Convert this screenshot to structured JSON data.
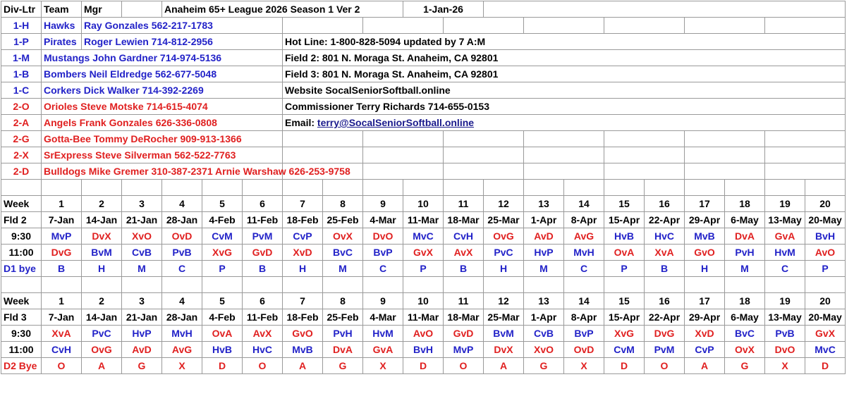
{
  "header": {
    "div_ltr": "Div-Ltr",
    "team": "Team",
    "mgr": "Mgr",
    "title": "Anaheim 65+ League 2026  Season 1 Ver 2",
    "date": "1-Jan-26"
  },
  "teams": [
    {
      "code": "1-H",
      "team": "Hawks",
      "contact": "Ray Gonzales 562-217-1783",
      "color": "#2222c8"
    },
    {
      "code": "1-P",
      "team": "Pirates",
      "contact": "Roger Lewien 714-812-2956",
      "color": "#2222c8"
    },
    {
      "code": "1-M",
      "text": "Mustangs John Gardner 714-974-5136",
      "color": "#2222c8"
    },
    {
      "code": "1-B",
      "text": "Bombers Neil Eldredge 562-677-5048",
      "color": "#2222c8"
    },
    {
      "code": "1-C",
      "text": "Corkers Dick Walker 714-392-2269",
      "color": "#2222c8"
    },
    {
      "code": "2-O",
      "text": "Orioles Steve Motske 714-615-4074",
      "color": "#e02020"
    },
    {
      "code": "2-A",
      "text": "Angels Frank Gonzales  626-336-0808",
      "color": "#e02020"
    },
    {
      "code": "2-G",
      "text": "Gotta-Bee Tommy DeRocher 909-913-1366",
      "color": "#e02020"
    },
    {
      "code": "2-X",
      "text": "SrExpress Steve Silverman 562-522-7763",
      "color": "#e02020"
    },
    {
      "code": "2-D",
      "text": "Bulldogs Mike Gremer 310-387-2371 Arnie Warshaw 626-253-9758",
      "color": "#e02020"
    }
  ],
  "info": [
    {
      "text": "Hot Line: 1-800-828-5094 updated by 7 A:M"
    },
    {
      "text": "Field 2: 801 N. Moraga St. Anaheim, CA 92801"
    },
    {
      "text": "Field 3: 801 N. Moraga St. Anaheim, CA 92801"
    },
    {
      "text": "Website SocalSeniorSoftball.online"
    },
    {
      "text": "Commissioner Terry Richards 714-655-0153"
    },
    {
      "text": "Email:",
      "link": "terry@SocalSeniorSoftball.online"
    }
  ],
  "schedules": [
    {
      "week_label": "Week",
      "weeks": [
        1,
        2,
        3,
        4,
        5,
        6,
        7,
        8,
        9,
        10,
        11,
        12,
        13,
        14,
        15,
        16,
        17,
        18,
        19,
        20
      ],
      "field": "Fld 2",
      "dates": [
        "7-Jan",
        "14-Jan",
        "21-Jan",
        "28-Jan",
        "4-Feb",
        "11-Feb",
        "18-Feb",
        "25-Feb",
        "4-Mar",
        "11-Mar",
        "18-Mar",
        "25-Mar",
        "1-Apr",
        "8-Apr",
        "15-Apr",
        "22-Apr",
        "29-Apr",
        "6-May",
        "13-May",
        "20-May"
      ],
      "slots": [
        {
          "time": "9:30",
          "games": [
            "MvP",
            "DvX",
            "XvO",
            "OvD",
            "CvM",
            "PvM",
            "CvP",
            "OvX",
            "DvO",
            "MvC",
            "CvH",
            "OvG",
            "AvD",
            "AvG",
            "HvB",
            "HvC",
            "MvB",
            "DvA",
            "GvA",
            "BvH"
          ]
        },
        {
          "time": "11:00",
          "games": [
            "DvG",
            "BvM",
            "CvB",
            "PvB",
            "XvG",
            "GvD",
            "XvD",
            "BvC",
            "BvP",
            "GvX",
            "AvX",
            "PvC",
            "HvP",
            "MvH",
            "OvA",
            "XvA",
            "GvO",
            "PvH",
            "HvM",
            "AvO"
          ]
        }
      ],
      "bye_label": "D1 bye",
      "byes": [
        "B",
        "H",
        "M",
        "C",
        "P",
        "B",
        "H",
        "M",
        "C",
        "P",
        "B",
        "H",
        "M",
        "C",
        "P",
        "B",
        "H",
        "M",
        "C",
        "P"
      ]
    },
    {
      "week_label": "Week",
      "weeks": [
        1,
        2,
        3,
        4,
        5,
        6,
        7,
        8,
        9,
        10,
        11,
        12,
        13,
        14,
        15,
        16,
        17,
        18,
        19,
        20
      ],
      "field": "Fld 3",
      "dates": [
        "7-Jan",
        "14-Jan",
        "21-Jan",
        "28-Jan",
        "4-Feb",
        "11-Feb",
        "18-Feb",
        "25-Feb",
        "4-Mar",
        "11-Mar",
        "18-Mar",
        "25-Mar",
        "1-Apr",
        "8-Apr",
        "15-Apr",
        "22-Apr",
        "29-Apr",
        "6-May",
        "13-May",
        "20-May"
      ],
      "slots": [
        {
          "time": "9:30",
          "games": [
            "XvA",
            "PvC",
            "HvP",
            "MvH",
            "OvA",
            "AvX",
            "GvO",
            "PvH",
            "HvM",
            "AvO",
            "GvD",
            "BvM",
            "CvB",
            "BvP",
            "XvG",
            "DvG",
            "XvD",
            "BvC",
            "PvB",
            "GvX"
          ]
        },
        {
          "time": "11:00",
          "games": [
            "CvH",
            "OvG",
            "AvD",
            "AvG",
            "HvB",
            "HvC",
            "MvB",
            "DvA",
            "GvA",
            "BvH",
            "MvP",
            "DvX",
            "XvO",
            "OvD",
            "CvM",
            "PvM",
            "CvP",
            "OvX",
            "DvO",
            "MvC"
          ]
        }
      ],
      "bye_label": "D2 Bye",
      "byes": [
        "O",
        "A",
        "G",
        "X",
        "D",
        "O",
        "A",
        "G",
        "X",
        "D",
        "O",
        "A",
        "G",
        "X",
        "D",
        "O",
        "A",
        "G",
        "X",
        "D"
      ]
    }
  ]
}
